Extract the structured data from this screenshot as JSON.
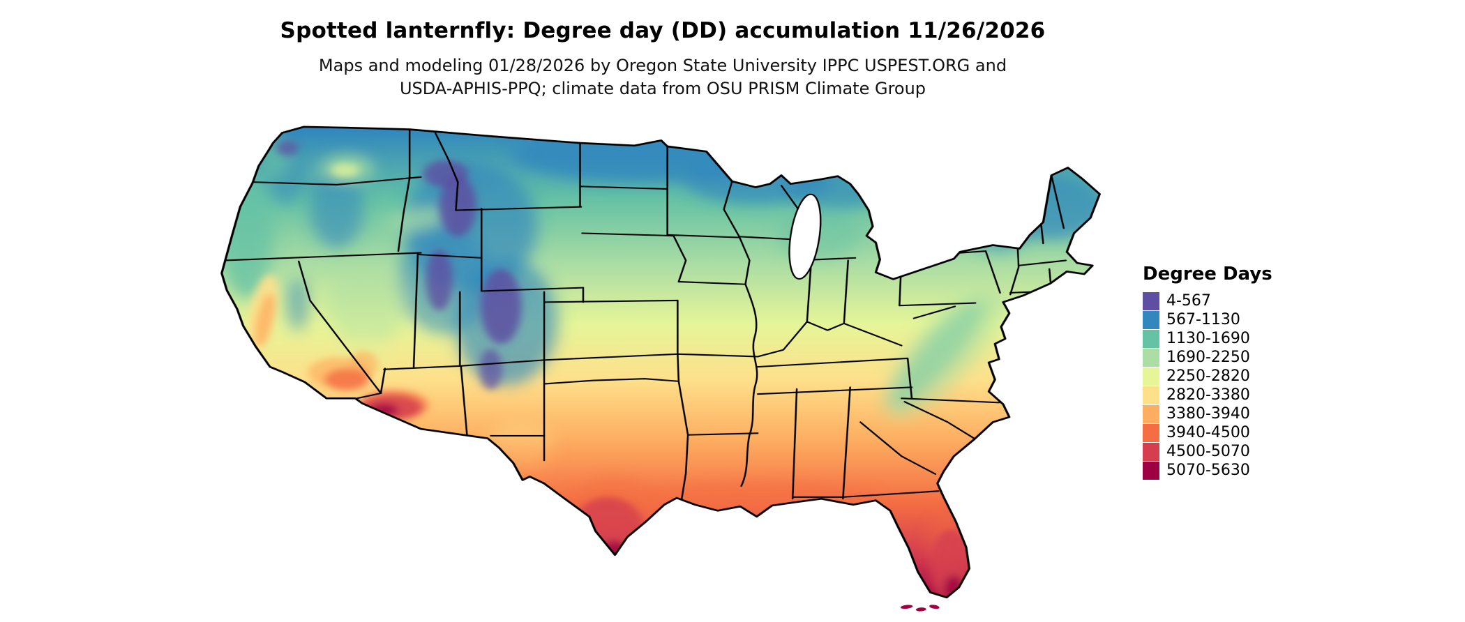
{
  "header": {
    "title": "Spotted lanternfly: Degree day (DD) accumulation 11/26/2026",
    "subtitle_line1": "Maps and modeling 01/28/2026 by Oregon State University IPPC USPEST.ORG and",
    "subtitle_line2": "USDA-APHIS-PPQ; climate data from OSU PRISM Climate Group"
  },
  "map": {
    "region": "contiguous United States",
    "outline_color": "#000000",
    "water_color": "#ffffff"
  },
  "legend": {
    "title": "Degree Days",
    "items": [
      {
        "label": "4-567",
        "color": "#5e4fa2"
      },
      {
        "label": "567-1130",
        "color": "#3288bd"
      },
      {
        "label": "1130-1690",
        "color": "#66c2a5"
      },
      {
        "label": "1690-2250",
        "color": "#abdda4"
      },
      {
        "label": "2250-2820",
        "color": "#e6f598"
      },
      {
        "label": "2820-3380",
        "color": "#fee08b"
      },
      {
        "label": "3380-3940",
        "color": "#fdae61"
      },
      {
        "label": "3940-4500",
        "color": "#f46d43"
      },
      {
        "label": "4500-5070",
        "color": "#d53e4f"
      },
      {
        "label": "5070-5630",
        "color": "#9e0142"
      }
    ]
  }
}
